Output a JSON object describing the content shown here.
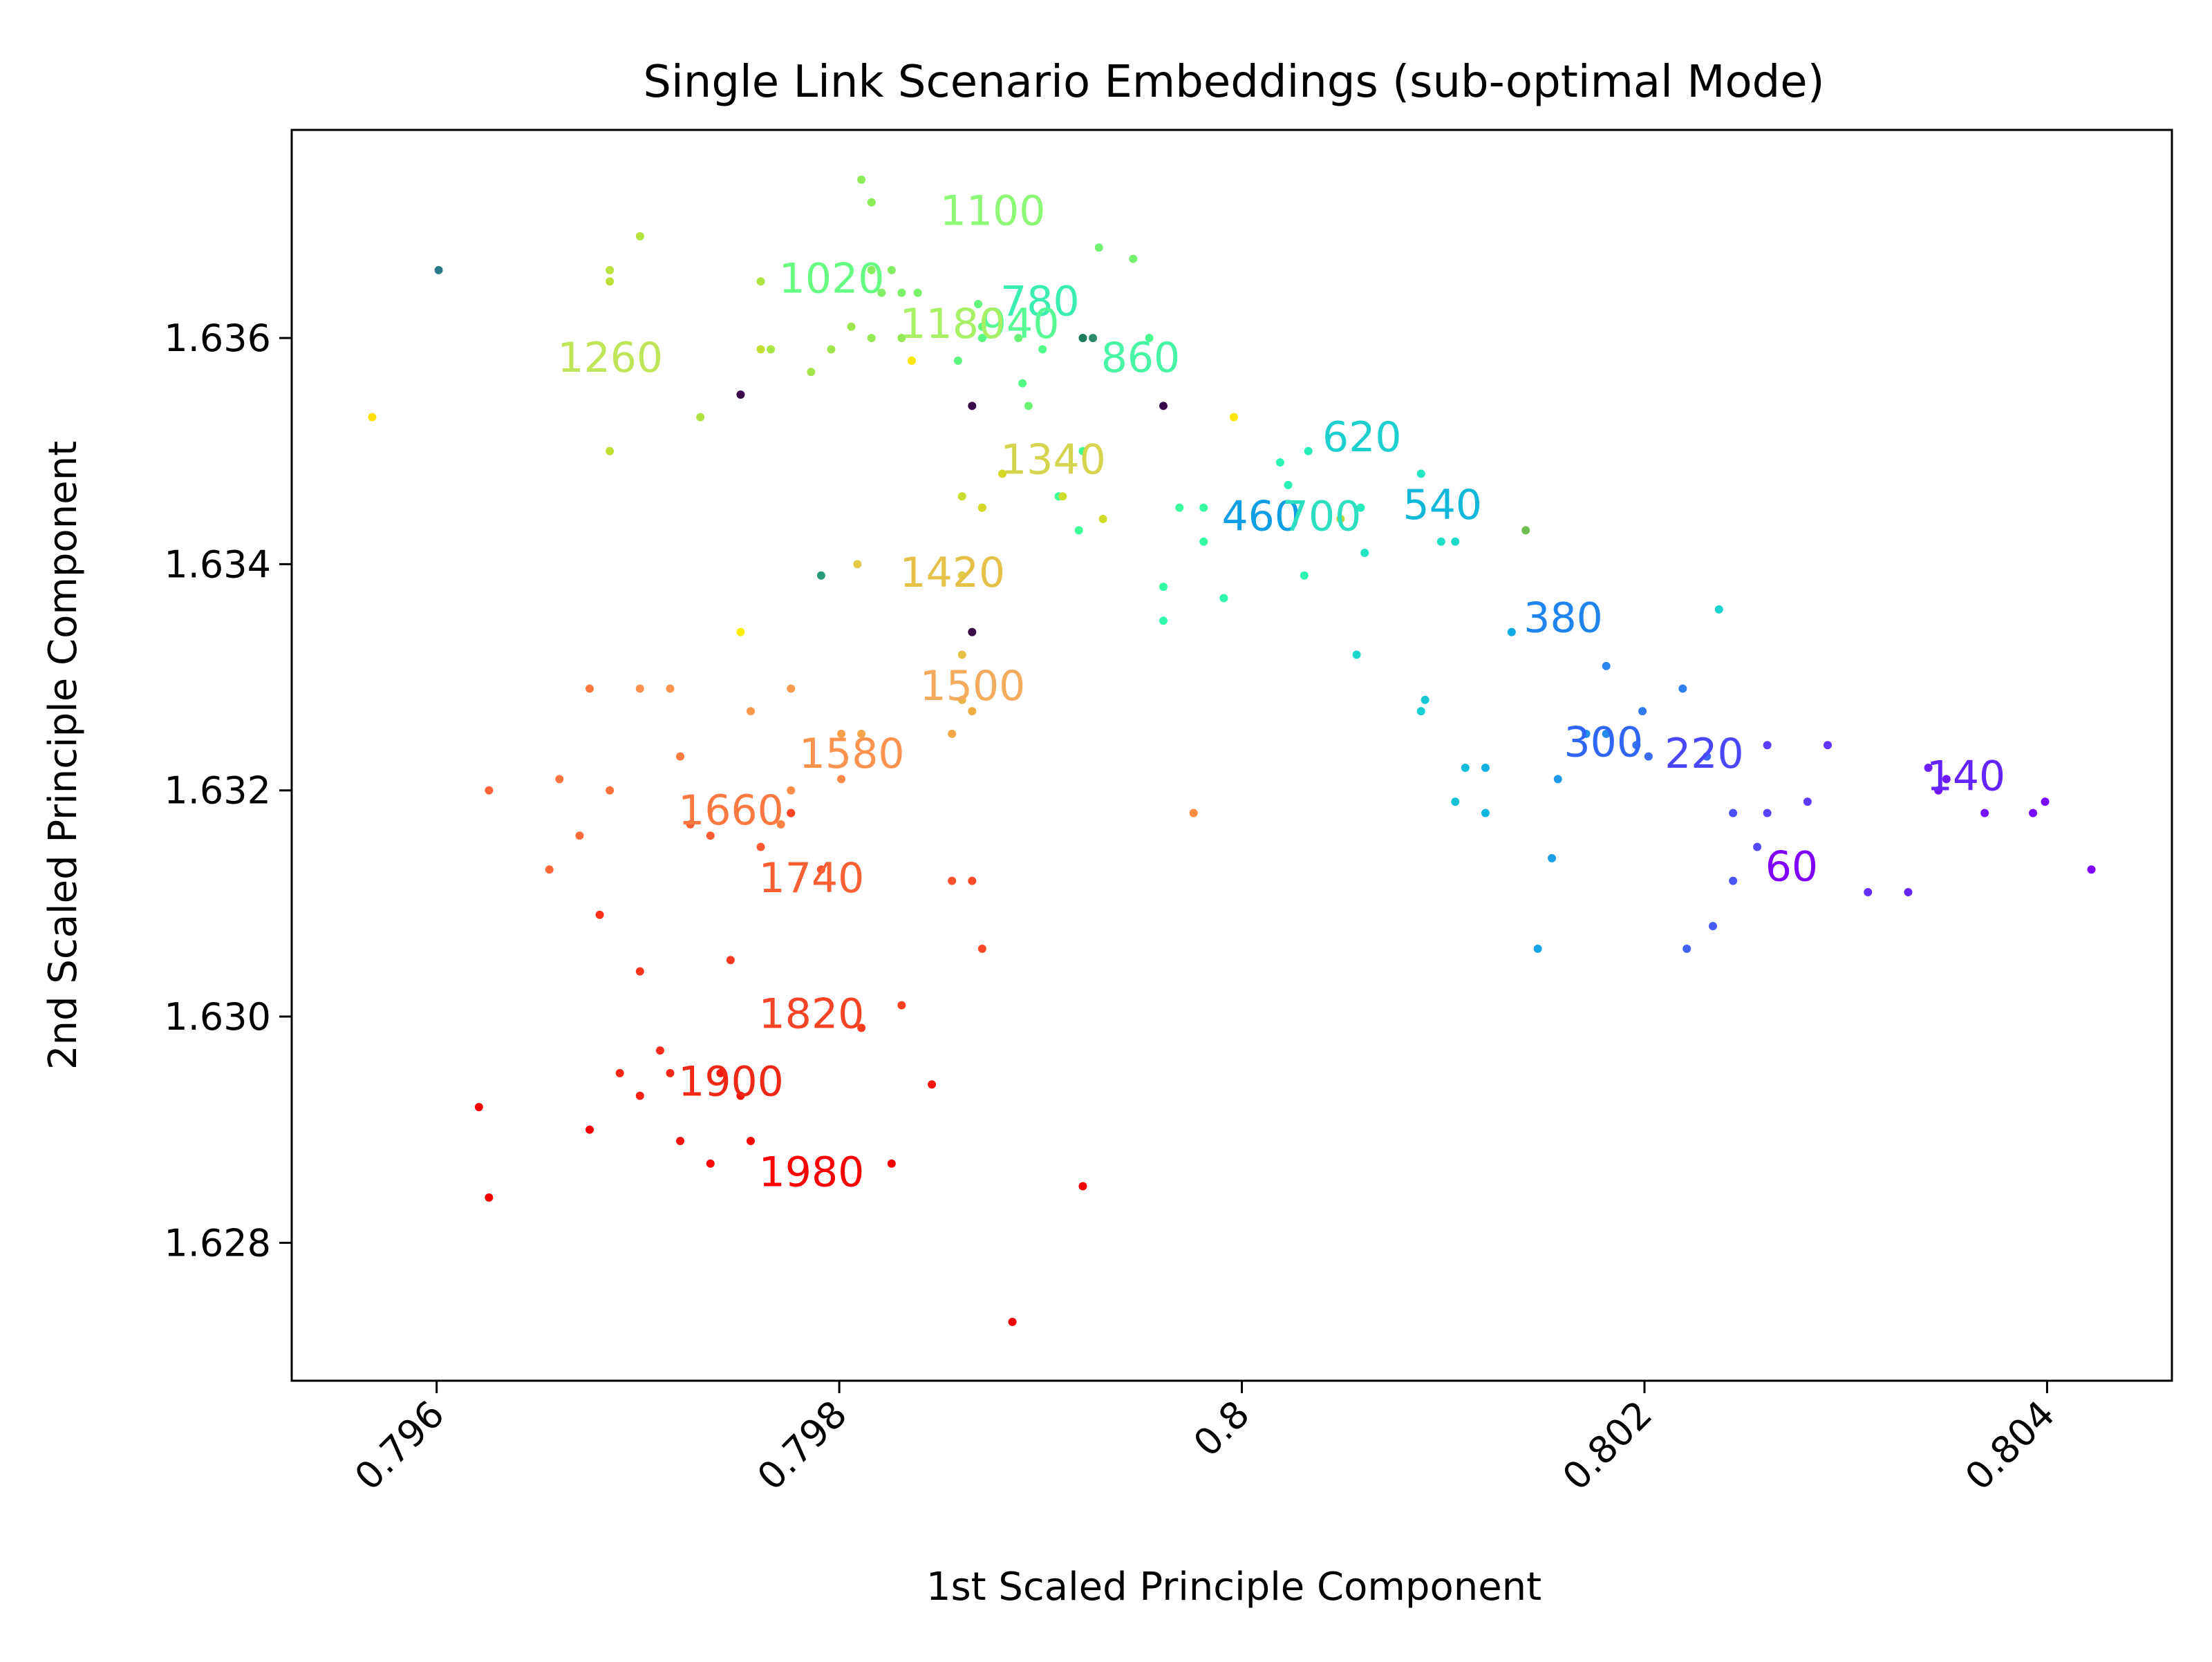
{
  "chart_data": {
    "type": "scatter",
    "title": "Single Link Scenario Embeddings (sub-optimal Mode)",
    "xlabel": "1st Scaled Principle Component",
    "ylabel": "2nd Scaled Principle Component",
    "xlim": [
      0.79528,
      0.80462
    ],
    "ylim": [
      1.62678,
      1.63784
    ],
    "grid": false,
    "colormap": "rainbow",
    "xticks": [
      {
        "value": 0.796,
        "label": "0.796"
      },
      {
        "value": 0.798,
        "label": "0.798"
      },
      {
        "value": 0.8,
        "label": "0.8"
      },
      {
        "value": 0.802,
        "label": "0.802"
      },
      {
        "value": 0.804,
        "label": "0.804"
      }
    ],
    "yticks": [
      {
        "value": 1.628,
        "label": "1.628"
      },
      {
        "value": 1.63,
        "label": "1.630"
      },
      {
        "value": 1.632,
        "label": "1.632"
      },
      {
        "value": 1.634,
        "label": "1.634"
      },
      {
        "value": 1.636,
        "label": "1.636"
      }
    ],
    "annotations": [
      {
        "text": "60",
        "x": 0.8026,
        "y": 1.6312,
        "color": "#8000ff"
      },
      {
        "text": "140",
        "x": 0.8034,
        "y": 1.632,
        "color": "#6424fe"
      },
      {
        "text": "220",
        "x": 0.8021,
        "y": 1.6322,
        "color": "#4a46fb"
      },
      {
        "text": "300",
        "x": 0.8016,
        "y": 1.6323,
        "color": "#2f66f6"
      },
      {
        "text": "380",
        "x": 0.8014,
        "y": 1.6334,
        "color": "#1f84ee"
      },
      {
        "text": "460",
        "x": 0.7999,
        "y": 1.6343,
        "color": "#109ee5"
      },
      {
        "text": "540",
        "x": 0.8008,
        "y": 1.6344,
        "color": "#12b8da"
      },
      {
        "text": "620",
        "x": 0.8004,
        "y": 1.635,
        "color": "#1ecfcf"
      },
      {
        "text": "700",
        "x": 0.8002,
        "y": 1.6343,
        "color": "#2cdfc1"
      },
      {
        "text": "780",
        "x": 0.7988,
        "y": 1.6362,
        "color": "#3aedb3"
      },
      {
        "text": "860",
        "x": 0.7993,
        "y": 1.6357,
        "color": "#48f5a4"
      },
      {
        "text": "940",
        "x": 0.7987,
        "y": 1.636,
        "color": "#56fb94"
      },
      {
        "text": "1020",
        "x": 0.7977,
        "y": 1.6364,
        "color": "#66fd82"
      },
      {
        "text": "1100",
        "x": 0.7985,
        "y": 1.637,
        "color": "#8cfa75"
      },
      {
        "text": "1180",
        "x": 0.7983,
        "y": 1.636,
        "color": "#a8f066"
      },
      {
        "text": "1260",
        "x": 0.7966,
        "y": 1.6357,
        "color": "#bfe659"
      },
      {
        "text": "1340",
        "x": 0.7988,
        "y": 1.6348,
        "color": "#d4d44d"
      },
      {
        "text": "1420",
        "x": 0.7983,
        "y": 1.6338,
        "color": "#e5c148"
      },
      {
        "text": "1500",
        "x": 0.7984,
        "y": 1.6328,
        "color": "#f5ab5c"
      },
      {
        "text": "1580",
        "x": 0.7978,
        "y": 1.6322,
        "color": "#fe9350"
      },
      {
        "text": "1660",
        "x": 0.7972,
        "y": 1.6317,
        "color": "#fd7942"
      },
      {
        "text": "1740",
        "x": 0.7976,
        "y": 1.6311,
        "color": "#fb5f34"
      },
      {
        "text": "1820",
        "x": 0.7976,
        "y": 1.6299,
        "color": "#f74426"
      },
      {
        "text": "1900",
        "x": 0.7972,
        "y": 1.6293,
        "color": "#f02818"
      },
      {
        "text": "1980",
        "x": 0.7976,
        "y": 1.6285,
        "color": "#ff0000"
      }
    ],
    "points": [
      {
        "x": 0.80422,
        "y": 1.6313,
        "color": "#8000ff"
      },
      {
        "x": 0.80399,
        "y": 1.6319,
        "color": "#7a06ff"
      },
      {
        "x": 0.80393,
        "y": 1.6318,
        "color": "#780aff"
      },
      {
        "x": 0.80369,
        "y": 1.6318,
        "color": "#7610ff"
      },
      {
        "x": 0.80346,
        "y": 1.632,
        "color": "#7216ff"
      },
      {
        "x": 0.8035,
        "y": 1.6321,
        "color": "#701aff"
      },
      {
        "x": 0.80341,
        "y": 1.6322,
        "color": "#6e20fe"
      },
      {
        "x": 0.80331,
        "y": 1.6311,
        "color": "#6a26fe"
      },
      {
        "x": 0.80311,
        "y": 1.6311,
        "color": "#662cfd"
      },
      {
        "x": 0.80291,
        "y": 1.6324,
        "color": "#6232fd"
      },
      {
        "x": 0.80281,
        "y": 1.6319,
        "color": "#5e38fc"
      },
      {
        "x": 0.80261,
        "y": 1.6324,
        "color": "#5a3efc"
      },
      {
        "x": 0.80261,
        "y": 1.6318,
        "color": "#5644fb"
      },
      {
        "x": 0.80256,
        "y": 1.6315,
        "color": "#524afa"
      },
      {
        "x": 0.80244,
        "y": 1.6318,
        "color": "#4e50f9"
      },
      {
        "x": 0.80244,
        "y": 1.6312,
        "color": "#4a56f8"
      },
      {
        "x": 0.80234,
        "y": 1.6308,
        "color": "#465cf7"
      },
      {
        "x": 0.80221,
        "y": 1.6306,
        "color": "#4262f6"
      },
      {
        "x": 0.80231,
        "y": 1.6323,
        "color": "#3e68f5"
      },
      {
        "x": 0.80202,
        "y": 1.6323,
        "color": "#3a6ef4"
      },
      {
        "x": 0.80196,
        "y": 1.6324,
        "color": "#3674f2"
      },
      {
        "x": 0.80199,
        "y": 1.6327,
        "color": "#327af1"
      },
      {
        "x": 0.80219,
        "y": 1.6329,
        "color": "#2e80ef"
      },
      {
        "x": 0.80181,
        "y": 1.6331,
        "color": "#2a86ee"
      },
      {
        "x": 0.80181,
        "y": 1.6325,
        "color": "#268cec"
      },
      {
        "x": 0.80171,
        "y": 1.6325,
        "color": "#2292ea"
      },
      {
        "x": 0.80157,
        "y": 1.6321,
        "color": "#1e98e8"
      },
      {
        "x": 0.80154,
        "y": 1.6314,
        "color": "#1a9ee6"
      },
      {
        "x": 0.80147,
        "y": 1.6306,
        "color": "#16a4e4"
      },
      {
        "x": 0.80134,
        "y": 1.6334,
        "color": "#12aae2"
      },
      {
        "x": 0.80121,
        "y": 1.6322,
        "color": "#10b0df"
      },
      {
        "x": 0.80121,
        "y": 1.6318,
        "color": "#10b6dd"
      },
      {
        "x": 0.80111,
        "y": 1.6322,
        "color": "#12bcda"
      },
      {
        "x": 0.80106,
        "y": 1.6319,
        "color": "#14c2d7"
      },
      {
        "x": 0.80091,
        "y": 1.6328,
        "color": "#16c8d4"
      },
      {
        "x": 0.80089,
        "y": 1.6327,
        "color": "#18ced1"
      },
      {
        "x": 0.80237,
        "y": 1.6336,
        "color": "#1ad2ce"
      },
      {
        "x": 0.80057,
        "y": 1.6332,
        "color": "#1cd6cb"
      },
      {
        "x": 0.80106,
        "y": 1.6342,
        "color": "#1edac8"
      },
      {
        "x": 0.80099,
        "y": 1.6342,
        "color": "#20dec5"
      },
      {
        "x": 0.80061,
        "y": 1.6341,
        "color": "#22e2c2"
      },
      {
        "x": 0.80089,
        "y": 1.6348,
        "color": "#24e6bf"
      },
      {
        "x": 0.80059,
        "y": 1.6345,
        "color": "#26eabc"
      },
      {
        "x": 0.80033,
        "y": 1.635,
        "color": "#28eeb9"
      },
      {
        "x": 0.80023,
        "y": 1.6347,
        "color": "#2af2b6"
      },
      {
        "x": 0.80019,
        "y": 1.6349,
        "color": "#2cf4b3"
      },
      {
        "x": 0.80031,
        "y": 1.6339,
        "color": "#2ef6b0"
      },
      {
        "x": 0.79991,
        "y": 1.6337,
        "color": "#30f8ad"
      },
      {
        "x": 0.79961,
        "y": 1.6335,
        "color": "#32faaa"
      },
      {
        "x": 0.79961,
        "y": 1.6338,
        "color": "#34fca7"
      },
      {
        "x": 0.79981,
        "y": 1.6342,
        "color": "#36fda4"
      },
      {
        "x": 0.79981,
        "y": 1.6345,
        "color": "#38fea1"
      },
      {
        "x": 0.79969,
        "y": 1.6345,
        "color": "#3afe9e"
      },
      {
        "x": 0.79919,
        "y": 1.6343,
        "color": "#3cff9b"
      },
      {
        "x": 0.79909,
        "y": 1.6346,
        "color": "#3eff98"
      },
      {
        "x": 0.79871,
        "y": 1.6345,
        "color": "#40ff95"
      },
      {
        "x": 0.79921,
        "y": 1.635,
        "color": "#44fe92"
      },
      {
        "x": 0.79954,
        "y": 1.636,
        "color": "#48fd8f"
      },
      {
        "x": 0.79921,
        "y": 1.636,
        "color": "#4cfc8c"
      },
      {
        "x": 0.79901,
        "y": 1.6359,
        "color": "#50fb89"
      },
      {
        "x": 0.79891,
        "y": 1.6356,
        "color": "#54fa86"
      },
      {
        "x": 0.79871,
        "y": 1.636,
        "color": "#58f983"
      },
      {
        "x": 0.79859,
        "y": 1.6358,
        "color": "#5cf880"
      },
      {
        "x": 0.79871,
        "y": 1.6361,
        "color": "#60f77d"
      },
      {
        "x": 0.79869,
        "y": 1.6363,
        "color": "#64f67a"
      },
      {
        "x": 0.79889,
        "y": 1.636,
        "color": "#68f577"
      },
      {
        "x": 0.79894,
        "y": 1.6354,
        "color": "#6cf474"
      },
      {
        "x": 0.79929,
        "y": 1.6368,
        "color": "#70f371"
      },
      {
        "x": 0.79946,
        "y": 1.6367,
        "color": "#74f26e"
      },
      {
        "x": 0.79839,
        "y": 1.6364,
        "color": "#78f16b"
      },
      {
        "x": 0.79831,
        "y": 1.6364,
        "color": "#7cf068"
      },
      {
        "x": 0.79821,
        "y": 1.6364,
        "color": "#80ef65"
      },
      {
        "x": 0.79826,
        "y": 1.6366,
        "color": "#84ee62"
      },
      {
        "x": 0.79816,
        "y": 1.6366,
        "color": "#88ed5f"
      },
      {
        "x": 0.79816,
        "y": 1.6372,
        "color": "#8cec5c"
      },
      {
        "x": 0.79811,
        "y": 1.6374,
        "color": "#90eb59"
      },
      {
        "x": 0.79831,
        "y": 1.636,
        "color": "#94ea56"
      },
      {
        "x": 0.79816,
        "y": 1.636,
        "color": "#98e953"
      },
      {
        "x": 0.79806,
        "y": 1.6361,
        "color": "#9ce850"
      },
      {
        "x": 0.79796,
        "y": 1.6359,
        "color": "#a0e74d"
      },
      {
        "x": 0.79786,
        "y": 1.6357,
        "color": "#a4e64a"
      },
      {
        "x": 0.79766,
        "y": 1.6359,
        "color": "#a8e547"
      },
      {
        "x": 0.79761,
        "y": 1.6365,
        "color": "#ace444"
      },
      {
        "x": 0.79731,
        "y": 1.6353,
        "color": "#b0e341"
      },
      {
        "x": 0.79701,
        "y": 1.6369,
        "color": "#b4e23e"
      },
      {
        "x": 0.79686,
        "y": 1.6366,
        "color": "#b8e13b"
      },
      {
        "x": 0.79686,
        "y": 1.6365,
        "color": "#bce038"
      },
      {
        "x": 0.79686,
        "y": 1.635,
        "color": "#c0df35"
      },
      {
        "x": 0.79761,
        "y": 1.6359,
        "color": "#c4de32"
      },
      {
        "x": 0.79861,
        "y": 1.6346,
        "color": "#c8dd2f"
      },
      {
        "x": 0.79911,
        "y": 1.6346,
        "color": "#ccdc2c"
      },
      {
        "x": 0.79931,
        "y": 1.6344,
        "color": "#d0db29"
      },
      {
        "x": 0.79881,
        "y": 1.6348,
        "color": "#d4d926"
      },
      {
        "x": 0.79871,
        "y": 1.6345,
        "color": "#d8d723"
      },
      {
        "x": 0.80049,
        "y": 1.6344,
        "color": "#c0d43a"
      },
      {
        "x": 0.80141,
        "y": 1.6343,
        "color": "#6cbf4e"
      },
      {
        "x": 0.79861,
        "y": 1.6339,
        "color": "#e0cd4a"
      },
      {
        "x": 0.79809,
        "y": 1.634,
        "color": "#e2c948"
      },
      {
        "x": 0.79861,
        "y": 1.6332,
        "color": "#e6c046"
      },
      {
        "x": 0.79861,
        "y": 1.6328,
        "color": "#eab444"
      },
      {
        "x": 0.79866,
        "y": 1.6327,
        "color": "#eeae44"
      },
      {
        "x": 0.79856,
        "y": 1.6325,
        "color": "#f2a846"
      },
      {
        "x": 0.79811,
        "y": 1.6325,
        "color": "#f4a448"
      },
      {
        "x": 0.79801,
        "y": 1.6325,
        "color": "#f6a04a"
      },
      {
        "x": 0.79776,
        "y": 1.6329,
        "color": "#f89c4c"
      },
      {
        "x": 0.79756,
        "y": 1.6327,
        "color": "#fa984e"
      },
      {
        "x": 0.79716,
        "y": 1.6329,
        "color": "#fb944e"
      },
      {
        "x": 0.79701,
        "y": 1.6329,
        "color": "#fc904c"
      },
      {
        "x": 0.79776,
        "y": 1.632,
        "color": "#fc8c4a"
      },
      {
        "x": 0.79801,
        "y": 1.6321,
        "color": "#fd8848"
      },
      {
        "x": 0.79776,
        "y": 1.6318,
        "color": "#fd8446"
      },
      {
        "x": 0.79771,
        "y": 1.6317,
        "color": "#fe8044"
      },
      {
        "x": 0.79721,
        "y": 1.6323,
        "color": "#fe7c42"
      },
      {
        "x": 0.79676,
        "y": 1.6329,
        "color": "#fe7840"
      },
      {
        "x": 0.79661,
        "y": 1.6321,
        "color": "#fe743e"
      },
      {
        "x": 0.79686,
        "y": 1.632,
        "color": "#fe703c"
      },
      {
        "x": 0.79671,
        "y": 1.6316,
        "color": "#fe6c3a"
      },
      {
        "x": 0.79656,
        "y": 1.6313,
        "color": "#fe6838"
      },
      {
        "x": 0.79626,
        "y": 1.632,
        "color": "#fe6436"
      },
      {
        "x": 0.79726,
        "y": 1.6317,
        "color": "#fe6034"
      },
      {
        "x": 0.79736,
        "y": 1.6316,
        "color": "#fe5c32"
      },
      {
        "x": 0.79761,
        "y": 1.6315,
        "color": "#fe5830"
      },
      {
        "x": 0.79791,
        "y": 1.6313,
        "color": "#fd542e"
      },
      {
        "x": 0.79856,
        "y": 1.6312,
        "color": "#fd502c"
      },
      {
        "x": 0.79866,
        "y": 1.6312,
        "color": "#fd4c2a"
      },
      {
        "x": 0.79871,
        "y": 1.6306,
        "color": "#fc4828"
      },
      {
        "x": 0.79776,
        "y": 1.6318,
        "color": "#fc4426"
      },
      {
        "x": 0.79976,
        "y": 1.6318,
        "color": "#fc8c3e"
      },
      {
        "x": 0.79831,
        "y": 1.6301,
        "color": "#fb4024"
      },
      {
        "x": 0.79811,
        "y": 1.6299,
        "color": "#fb3c22"
      },
      {
        "x": 0.79746,
        "y": 1.6305,
        "color": "#fa3820"
      },
      {
        "x": 0.79701,
        "y": 1.6304,
        "color": "#fa341e"
      },
      {
        "x": 0.79681,
        "y": 1.6309,
        "color": "#f9301c"
      },
      {
        "x": 0.79711,
        "y": 1.6297,
        "color": "#f92c1a"
      },
      {
        "x": 0.79716,
        "y": 1.6295,
        "color": "#f82818"
      },
      {
        "x": 0.79691,
        "y": 1.6295,
        "color": "#f82416"
      },
      {
        "x": 0.79701,
        "y": 1.6293,
        "color": "#f72014"
      },
      {
        "x": 0.79741,
        "y": 1.6295,
        "color": "#f71c12"
      },
      {
        "x": 0.79751,
        "y": 1.6293,
        "color": "#f61810"
      },
      {
        "x": 0.79846,
        "y": 1.6294,
        "color": "#f6140e"
      },
      {
        "x": 0.79721,
        "y": 1.6289,
        "color": "#f5100c"
      },
      {
        "x": 0.79736,
        "y": 1.6287,
        "color": "#f50c0a"
      },
      {
        "x": 0.79756,
        "y": 1.6289,
        "color": "#f40808"
      },
      {
        "x": 0.79676,
        "y": 1.629,
        "color": "#f40406"
      },
      {
        "x": 0.79621,
        "y": 1.6292,
        "color": "#f30004"
      },
      {
        "x": 0.79626,
        "y": 1.6284,
        "color": "#f20000"
      },
      {
        "x": 0.79826,
        "y": 1.6287,
        "color": "#f10000"
      },
      {
        "x": 0.79921,
        "y": 1.6285,
        "color": "#f00000"
      },
      {
        "x": 0.79886,
        "y": 1.6273,
        "color": "#ee0000"
      },
      {
        "x": 0.79568,
        "y": 1.6353,
        "color": "#ffe000"
      },
      {
        "x": 0.79601,
        "y": 1.6366,
        "color": "#2a7a8a"
      },
      {
        "x": 0.79751,
        "y": 1.6355,
        "color": "#3a0a4a"
      },
      {
        "x": 0.79866,
        "y": 1.6354,
        "color": "#3a0a4a"
      },
      {
        "x": 0.79961,
        "y": 1.6354,
        "color": "#3a0a4a"
      },
      {
        "x": 0.79866,
        "y": 1.6334,
        "color": "#3a0a4a"
      },
      {
        "x": 0.79921,
        "y": 1.636,
        "color": "#1a7a5a"
      },
      {
        "x": 0.79926,
        "y": 1.636,
        "color": "#2a8a6a"
      },
      {
        "x": 0.79791,
        "y": 1.6339,
        "color": "#2a9a7a"
      },
      {
        "x": 0.79836,
        "y": 1.6358,
        "color": "#ffe600"
      },
      {
        "x": 0.79751,
        "y": 1.6334,
        "color": "#ffee00"
      },
      {
        "x": 0.79996,
        "y": 1.6353,
        "color": "#ffe600"
      }
    ]
  }
}
